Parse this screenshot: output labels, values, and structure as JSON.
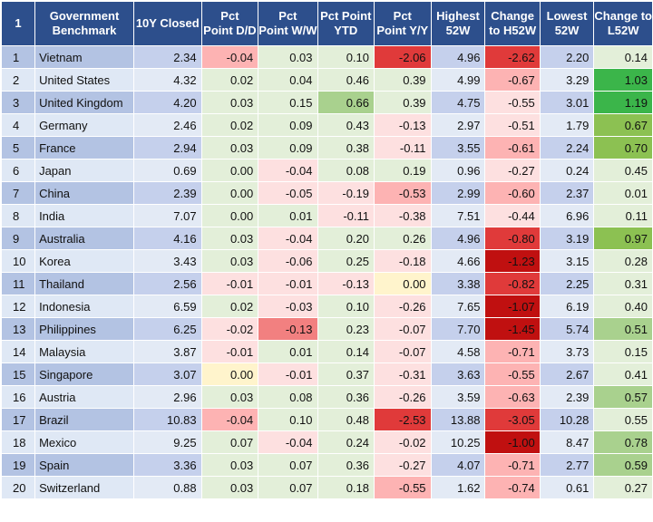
{
  "colors": {
    "header_bg": "#2d4f8c",
    "row_odd": "#b3c3e3",
    "row_even": "#dfe8f5",
    "pos_light": "#e3efd9",
    "pos_mid": "#a9d18e",
    "pos_strong": "#8cc152",
    "pos_deep": "#3bb54a",
    "neg_light": "#fde0e0",
    "neg_mid": "#fdb3b3",
    "neg_strong": "#f28080",
    "neg_deep": "#e03a3a",
    "neg_darkest": "#c01010",
    "zero_yellow": "#fff4cc"
  },
  "headers": [
    [
      "1",
      ""
    ],
    [
      "Government",
      "Benchmark"
    ],
    [
      "10Y Closed",
      ""
    ],
    [
      "Pct",
      "Point D/D"
    ],
    [
      "Pct",
      "Point W/W"
    ],
    [
      "Pct Point",
      "YTD"
    ],
    [
      "Pct",
      "Point Y/Y"
    ],
    [
      "Highest",
      "52W"
    ],
    [
      "Change",
      "to H52W"
    ],
    [
      "Lowest",
      "52W"
    ],
    [
      "Change to",
      "L52W"
    ]
  ],
  "rows": [
    [
      "1",
      "Vietnam",
      "2.34",
      "-0.04",
      "0.03",
      "0.10",
      "-2.06",
      "4.96",
      "-2.62",
      "2.20",
      "0.14"
    ],
    [
      "2",
      "United States",
      "4.32",
      "0.02",
      "0.04",
      "0.46",
      "0.39",
      "4.99",
      "-0.67",
      "3.29",
      "1.03"
    ],
    [
      "3",
      "United Kingdom",
      "4.20",
      "0.03",
      "0.15",
      "0.66",
      "0.39",
      "4.75",
      "-0.55",
      "3.01",
      "1.19"
    ],
    [
      "4",
      "Germany",
      "2.46",
      "0.02",
      "0.09",
      "0.43",
      "-0.13",
      "2.97",
      "-0.51",
      "1.79",
      "0.67"
    ],
    [
      "5",
      "France",
      "2.94",
      "0.03",
      "0.09",
      "0.38",
      "-0.11",
      "3.55",
      "-0.61",
      "2.24",
      "0.70"
    ],
    [
      "6",
      "Japan",
      "0.69",
      "0.00",
      "-0.04",
      "0.08",
      "0.19",
      "0.96",
      "-0.27",
      "0.24",
      "0.45"
    ],
    [
      "7",
      "China",
      "2.39",
      "0.00",
      "-0.05",
      "-0.19",
      "-0.53",
      "2.99",
      "-0.60",
      "2.37",
      "0.01"
    ],
    [
      "8",
      "India",
      "7.07",
      "0.00",
      "0.01",
      "-0.11",
      "-0.38",
      "7.51",
      "-0.44",
      "6.96",
      "0.11"
    ],
    [
      "9",
      "Australia",
      "4.16",
      "0.03",
      "-0.04",
      "0.20",
      "0.26",
      "4.96",
      "-0.80",
      "3.19",
      "0.97"
    ],
    [
      "10",
      "Korea",
      "3.43",
      "0.03",
      "-0.06",
      "0.25",
      "-0.18",
      "4.66",
      "-1.23",
      "3.15",
      "0.28"
    ],
    [
      "11",
      "Thailand",
      "2.56",
      "-0.01",
      "-0.01",
      "-0.13",
      "0.00",
      "3.38",
      "-0.82",
      "2.25",
      "0.31"
    ],
    [
      "12",
      "Indonesia",
      "6.59",
      "0.02",
      "-0.03",
      "0.10",
      "-0.26",
      "7.65",
      "-1.07",
      "6.19",
      "0.40"
    ],
    [
      "13",
      "Philippines",
      "6.25",
      "-0.02",
      "-0.13",
      "0.23",
      "-0.07",
      "7.70",
      "-1.45",
      "5.74",
      "0.51"
    ],
    [
      "14",
      "Malaysia",
      "3.87",
      "-0.01",
      "0.01",
      "0.14",
      "-0.07",
      "4.58",
      "-0.71",
      "3.73",
      "0.15"
    ],
    [
      "15",
      "Singapore",
      "3.07",
      "0.00",
      "-0.01",
      "0.37",
      "-0.31",
      "3.63",
      "-0.55",
      "2.67",
      "0.41"
    ],
    [
      "16",
      "Austria",
      "2.96",
      "0.03",
      "0.08",
      "0.36",
      "-0.26",
      "3.59",
      "-0.63",
      "2.39",
      "0.57"
    ],
    [
      "17",
      "Brazil",
      "10.83",
      "-0.04",
      "0.10",
      "0.48",
      "-2.53",
      "13.88",
      "-3.05",
      "10.28",
      "0.55"
    ],
    [
      "18",
      "Mexico",
      "9.25",
      "0.07",
      "-0.04",
      "0.24",
      "-0.02",
      "10.25",
      "-1.00",
      "8.47",
      "0.78"
    ],
    [
      "19",
      "Spain",
      "3.36",
      "0.03",
      "0.07",
      "0.36",
      "-0.27",
      "4.07",
      "-0.71",
      "2.77",
      "0.59"
    ],
    [
      "20",
      "Switzerland",
      "0.88",
      "0.03",
      "0.07",
      "0.18",
      "-0.55",
      "1.62",
      "-0.74",
      "0.61",
      "0.27"
    ]
  ],
  "cell_tones": [
    [
      "neg_mid",
      "pos_light",
      "pos_light",
      "neg_deep",
      "neg_deep",
      "pos_light"
    ],
    [
      "pos_light",
      "pos_light",
      "pos_light",
      "pos_light",
      "neg_mid",
      "pos_deep"
    ],
    [
      "pos_light",
      "pos_light",
      "pos_mid",
      "pos_light",
      "neg_light",
      "pos_deep"
    ],
    [
      "pos_light",
      "pos_light",
      "pos_light",
      "neg_light",
      "neg_light",
      "pos_strong"
    ],
    [
      "pos_light",
      "pos_light",
      "pos_light",
      "neg_light",
      "neg_mid",
      "pos_strong"
    ],
    [
      "pos_light",
      "neg_light",
      "pos_light",
      "pos_light",
      "neg_light",
      "pos_light"
    ],
    [
      "pos_light",
      "neg_light",
      "neg_light",
      "neg_mid",
      "neg_mid",
      "pos_light"
    ],
    [
      "pos_light",
      "pos_light",
      "neg_light",
      "neg_light",
      "neg_light",
      "pos_light"
    ],
    [
      "pos_light",
      "neg_light",
      "pos_light",
      "pos_light",
      "neg_deep",
      "pos_strong"
    ],
    [
      "pos_light",
      "neg_light",
      "pos_light",
      "neg_light",
      "neg_darkest",
      "pos_light"
    ],
    [
      "neg_light",
      "neg_light",
      "neg_light",
      "zero_yellow",
      "neg_deep",
      "pos_light"
    ],
    [
      "pos_light",
      "neg_light",
      "pos_light",
      "neg_light",
      "neg_darkest",
      "pos_light"
    ],
    [
      "neg_light",
      "neg_strong",
      "pos_light",
      "neg_light",
      "neg_darkest",
      "pos_mid"
    ],
    [
      "neg_light",
      "pos_light",
      "pos_light",
      "neg_light",
      "neg_mid",
      "pos_light"
    ],
    [
      "zero_yellow",
      "neg_light",
      "pos_light",
      "neg_light",
      "neg_mid",
      "pos_light"
    ],
    [
      "pos_light",
      "pos_light",
      "pos_light",
      "neg_light",
      "neg_mid",
      "pos_mid"
    ],
    [
      "neg_mid",
      "pos_light",
      "pos_light",
      "neg_deep",
      "neg_deep",
      "pos_light"
    ],
    [
      "pos_light",
      "neg_light",
      "pos_light",
      "neg_light",
      "neg_darkest",
      "pos_mid"
    ],
    [
      "pos_light",
      "pos_light",
      "pos_light",
      "neg_light",
      "neg_mid",
      "pos_mid"
    ],
    [
      "pos_light",
      "pos_light",
      "pos_light",
      "neg_mid",
      "neg_mid",
      "pos_light"
    ]
  ]
}
